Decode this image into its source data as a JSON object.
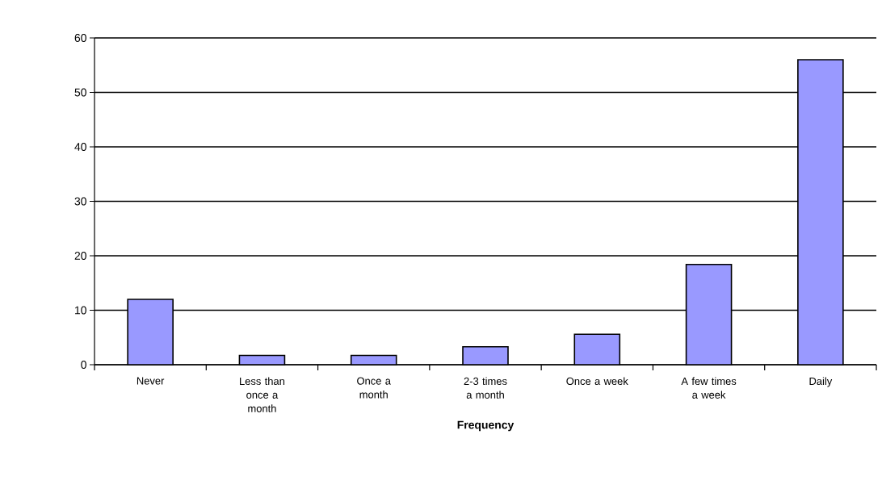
{
  "chart_data": {
    "type": "bar",
    "xlabel": "Frequency",
    "categories": [
      "Never",
      "Less than once a month",
      "Once a month",
      "2-3 times a month",
      "Once a week",
      "A few times a week",
      "Daily"
    ],
    "values": [
      12,
      1.7,
      1.7,
      3.3,
      5.6,
      18.4,
      56
    ],
    "color": "#9999ff",
    "ylim": [
      0,
      60
    ],
    "yticks": [
      0,
      10,
      20,
      30,
      40,
      50,
      60
    ],
    "grid": "y"
  }
}
